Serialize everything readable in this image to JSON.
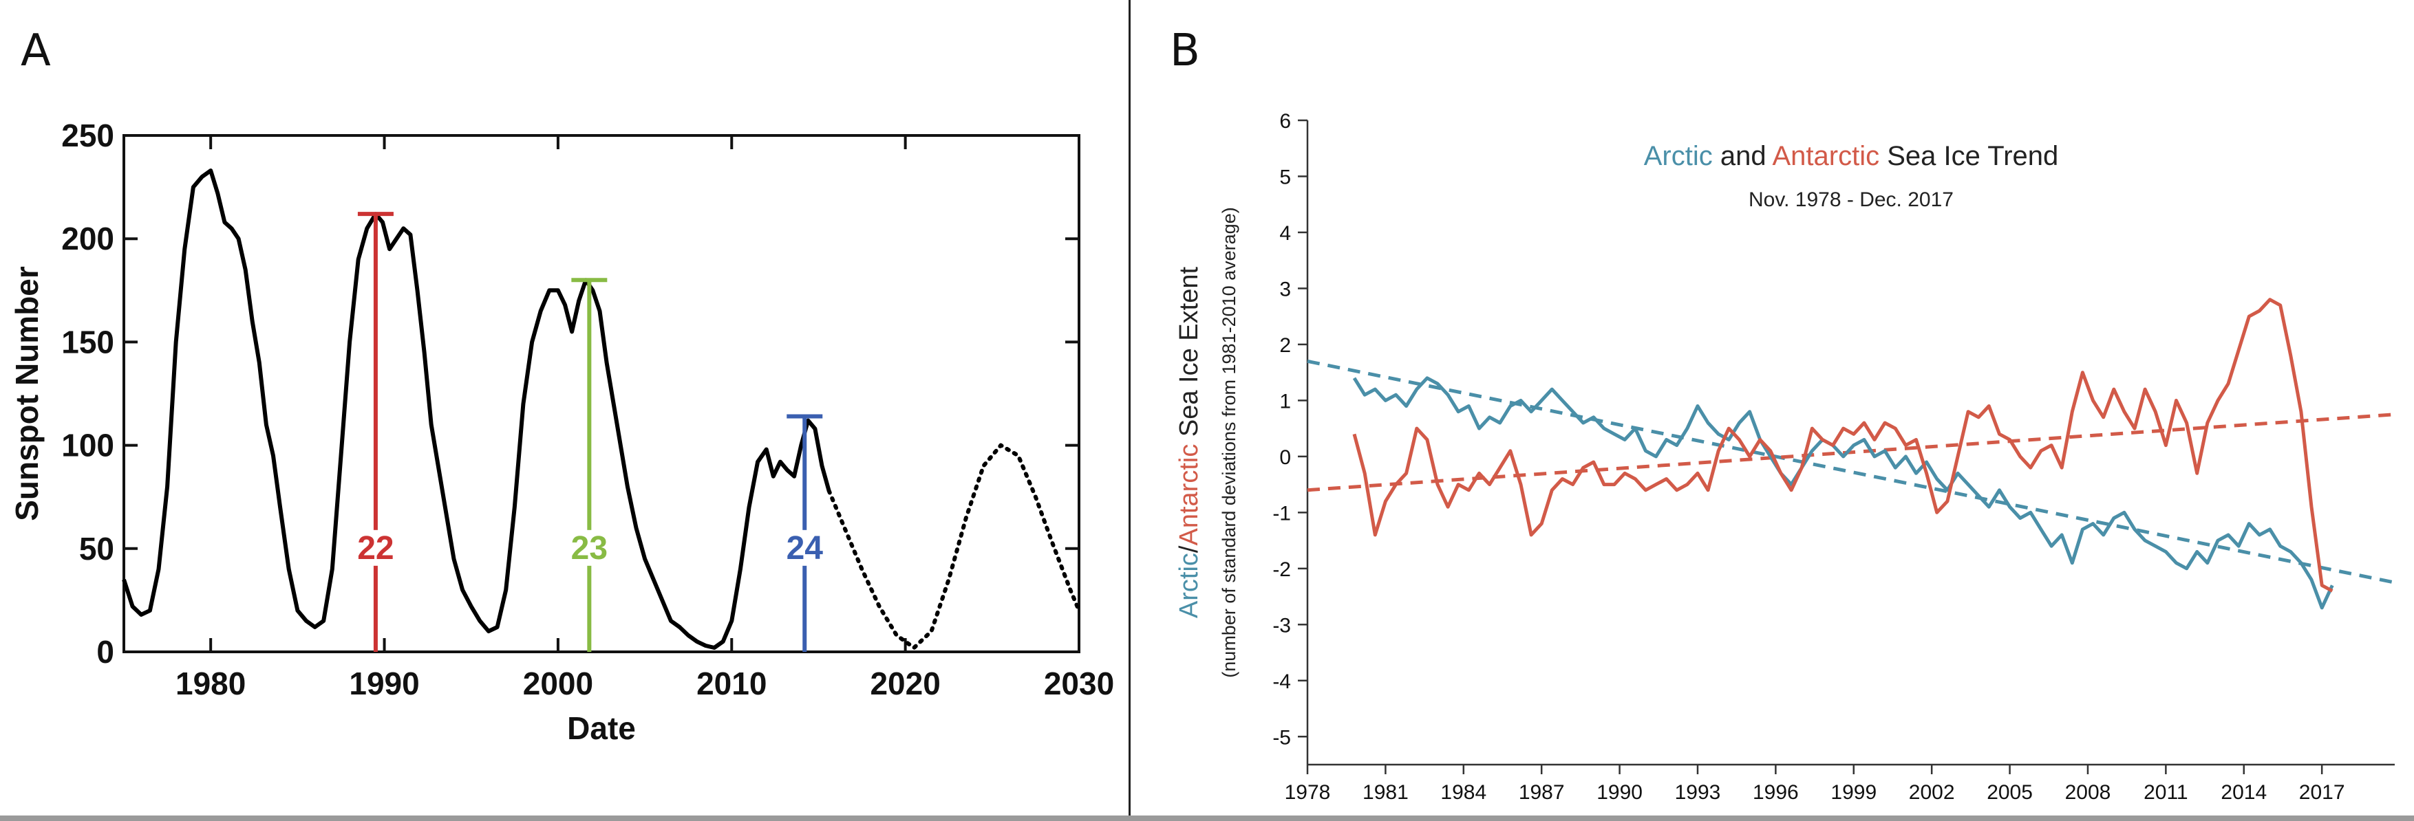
{
  "panels": {
    "a_label": "A",
    "b_label": "B"
  },
  "chart_data": [
    {
      "panel": "A",
      "type": "line",
      "title": "",
      "xlabel": "Date",
      "ylabel": "Sunspot Number",
      "xlim": [
        1975,
        2030
      ],
      "ylim": [
        0,
        250
      ],
      "xticks": [
        1980,
        1990,
        2000,
        2010,
        2020,
        2030
      ],
      "yticks": [
        0,
        50,
        100,
        150,
        200,
        250
      ],
      "series": [
        {
          "style": "solid",
          "color": "#000000",
          "x": [
            1975.0,
            1975.5,
            1976.0,
            1976.5,
            1977.0,
            1977.5,
            1978.0,
            1978.5,
            1979.0,
            1979.5,
            1980.0,
            1980.4,
            1980.8,
            1981.2,
            1981.6,
            1982.0,
            1982.4,
            1982.8,
            1983.2,
            1983.6,
            1984.0,
            1984.5,
            1985.0,
            1985.5,
            1986.0,
            1986.5,
            1987.0,
            1987.5,
            1988.0,
            1988.5,
            1989.0,
            1989.5,
            1989.9,
            1990.3,
            1990.7,
            1991.1,
            1991.5,
            1991.9,
            1992.3,
            1992.7,
            1993.1,
            1993.5,
            1994.0,
            1994.5,
            1995.0,
            1995.5,
            1996.0,
            1996.5,
            1997.0,
            1997.5,
            1998.0,
            1998.5,
            1999.0,
            1999.5,
            2000.0,
            2000.4,
            2000.8,
            2001.2,
            2001.6,
            2002.0,
            2002.4,
            2002.8,
            2003.2,
            2003.6,
            2004.0,
            2004.5,
            2005.0,
            2005.5,
            2006.0,
            2006.5,
            2007.0,
            2007.5,
            2008.0,
            2008.5,
            2009.0,
            2009.5,
            2010.0,
            2010.5,
            2011.0,
            2011.5,
            2012.0,
            2012.4,
            2012.8,
            2013.2,
            2013.6,
            2014.0,
            2014.4,
            2014.8,
            2015.2,
            2015.6
          ],
          "y": [
            35,
            22,
            18,
            20,
            40,
            80,
            150,
            195,
            225,
            230,
            233,
            222,
            208,
            205,
            200,
            185,
            160,
            140,
            110,
            95,
            70,
            40,
            20,
            15,
            12,
            15,
            40,
            95,
            150,
            190,
            205,
            212,
            208,
            195,
            200,
            205,
            202,
            175,
            145,
            110,
            90,
            70,
            45,
            30,
            22,
            15,
            10,
            12,
            30,
            70,
            120,
            150,
            165,
            175,
            175,
            168,
            155,
            170,
            180,
            175,
            165,
            140,
            120,
            100,
            80,
            60,
            45,
            35,
            25,
            15,
            12,
            8,
            5,
            3,
            2,
            5,
            15,
            40,
            70,
            92,
            98,
            85,
            92,
            88,
            85,
            100,
            112,
            108,
            90,
            78
          ]
        },
        {
          "style": "dotted",
          "color": "#000000",
          "x": [
            2015.6,
            2016.5,
            2017.5,
            2018.5,
            2019.5,
            2020.5,
            2021.5,
            2022.5,
            2023.5,
            2024.5,
            2025.5,
            2026.5,
            2027.5,
            2028.5,
            2029.5,
            2030.0
          ],
          "y": [
            78,
            60,
            40,
            22,
            8,
            2,
            10,
            35,
            65,
            90,
            100,
            95,
            75,
            52,
            30,
            20
          ]
        }
      ],
      "markers": [
        {
          "label": "22",
          "x": 1989.5,
          "y": 212,
          "color": "#cc3333"
        },
        {
          "label": "23",
          "x": 2001.8,
          "y": 180,
          "color": "#88bb44"
        },
        {
          "label": "24",
          "x": 2014.2,
          "y": 114,
          "color": "#3a5fb0"
        }
      ]
    },
    {
      "panel": "B",
      "type": "line",
      "title_parts": [
        "Arctic",
        " and ",
        "Antarctic",
        " Sea Ice Trend"
      ],
      "subtitle": "Nov. 1978 -  Dec. 2017",
      "ylabel_parts": [
        "Arctic",
        "/",
        "Antarctic",
        " Sea Ice Extent"
      ],
      "ylabel_sub": "(number of standard deviations from 1981-2010 average)",
      "xlim": [
        1978,
        2019.8
      ],
      "ylim": [
        -5.5,
        6
      ],
      "xticks": [
        1978,
        1981,
        1984,
        1987,
        1990,
        1993,
        1996,
        1999,
        2002,
        2005,
        2008,
        2011,
        2014,
        2017
      ],
      "yticks": [
        -5,
        -4,
        -3,
        -2,
        -1,
        0,
        1,
        2,
        3,
        4,
        5,
        6
      ],
      "colors": {
        "arctic": "#4a8fa8",
        "antarctic": "#d25a48",
        "dark": "#222222"
      },
      "series": [
        {
          "name": "Arctic",
          "color": "#4a8fa8",
          "x": [
            1979.8,
            1980.2,
            1980.6,
            1981.0,
            1981.4,
            1981.8,
            1982.2,
            1982.6,
            1983.0,
            1983.4,
            1983.8,
            1984.2,
            1984.6,
            1985.0,
            1985.4,
            1985.8,
            1986.2,
            1986.6,
            1987.0,
            1987.4,
            1987.8,
            1988.2,
            1988.6,
            1989.0,
            1989.4,
            1989.8,
            1990.2,
            1990.6,
            1991.0,
            1991.4,
            1991.8,
            1992.2,
            1992.6,
            1993.0,
            1993.4,
            1993.8,
            1994.2,
            1994.6,
            1995.0,
            1995.4,
            1995.8,
            1996.2,
            1996.6,
            1997.0,
            1997.4,
            1997.8,
            1998.2,
            1998.6,
            1999.0,
            1999.4,
            1999.8,
            2000.2,
            2000.6,
            2001.0,
            2001.4,
            2001.8,
            2002.2,
            2002.6,
            2003.0,
            2003.4,
            2003.8,
            2004.2,
            2004.6,
            2005.0,
            2005.4,
            2005.8,
            2006.2,
            2006.6,
            2007.0,
            2007.4,
            2007.8,
            2008.2,
            2008.6,
            2009.0,
            2009.4,
            2009.8,
            2010.2,
            2010.6,
            2011.0,
            2011.4,
            2011.8,
            2012.2,
            2012.6,
            2013.0,
            2013.4,
            2013.8,
            2014.2,
            2014.6,
            2015.0,
            2015.4,
            2015.8,
            2016.2,
            2016.6,
            2017.0,
            2017.4
          ],
          "y": [
            1.4,
            1.1,
            1.2,
            1.0,
            1.1,
            0.9,
            1.2,
            1.4,
            1.3,
            1.1,
            0.8,
            0.9,
            0.5,
            0.7,
            0.6,
            0.9,
            1.0,
            0.8,
            1.0,
            1.2,
            1.0,
            0.8,
            0.6,
            0.7,
            0.5,
            0.4,
            0.3,
            0.5,
            0.1,
            0.0,
            0.3,
            0.2,
            0.5,
            0.9,
            0.6,
            0.4,
            0.3,
            0.6,
            0.8,
            0.3,
            0.0,
            -0.3,
            -0.5,
            -0.2,
            0.1,
            0.3,
            0.2,
            0.0,
            0.2,
            0.3,
            0.0,
            0.1,
            -0.2,
            0.0,
            -0.3,
            -0.1,
            -0.4,
            -0.6,
            -0.3,
            -0.5,
            -0.7,
            -0.9,
            -0.6,
            -0.9,
            -1.1,
            -1.0,
            -1.3,
            -1.6,
            -1.4,
            -1.9,
            -1.3,
            -1.2,
            -1.4,
            -1.1,
            -1.0,
            -1.3,
            -1.5,
            -1.6,
            -1.7,
            -1.9,
            -2.0,
            -1.7,
            -1.9,
            -1.5,
            -1.4,
            -1.6,
            -1.2,
            -1.4,
            -1.3,
            -1.6,
            -1.7,
            -1.9,
            -2.2,
            -2.7,
            -2.3
          ]
        },
        {
          "name": "Antarctic",
          "color": "#d25a48",
          "x": [
            1979.8,
            1980.2,
            1980.6,
            1981.0,
            1981.4,
            1981.8,
            1982.2,
            1982.6,
            1983.0,
            1983.4,
            1983.8,
            1984.2,
            1984.6,
            1985.0,
            1985.4,
            1985.8,
            1986.2,
            1986.6,
            1987.0,
            1987.4,
            1987.8,
            1988.2,
            1988.6,
            1989.0,
            1989.4,
            1989.8,
            1990.2,
            1990.6,
            1991.0,
            1991.4,
            1991.8,
            1992.2,
            1992.6,
            1993.0,
            1993.4,
            1993.8,
            1994.2,
            1994.6,
            1995.0,
            1995.4,
            1995.8,
            1996.2,
            1996.6,
            1997.0,
            1997.4,
            1997.8,
            1998.2,
            1998.6,
            1999.0,
            1999.4,
            1999.8,
            2000.2,
            2000.6,
            2001.0,
            2001.4,
            2001.8,
            2002.2,
            2002.6,
            2003.0,
            2003.4,
            2003.8,
            2004.2,
            2004.6,
            2005.0,
            2005.4,
            2005.8,
            2006.2,
            2006.6,
            2007.0,
            2007.4,
            2007.8,
            2008.2,
            2008.6,
            2009.0,
            2009.4,
            2009.8,
            2010.2,
            2010.6,
            2011.0,
            2011.4,
            2011.8,
            2012.2,
            2012.6,
            2013.0,
            2013.4,
            2013.8,
            2014.2,
            2014.6,
            2015.0,
            2015.4,
            2015.8,
            2016.2,
            2016.6,
            2017.0,
            2017.4
          ],
          "y": [
            0.4,
            -0.3,
            -1.4,
            -0.8,
            -0.5,
            -0.3,
            0.5,
            0.3,
            -0.5,
            -0.9,
            -0.5,
            -0.6,
            -0.3,
            -0.5,
            -0.2,
            0.1,
            -0.5,
            -1.4,
            -1.2,
            -0.6,
            -0.4,
            -0.5,
            -0.2,
            -0.1,
            -0.5,
            -0.5,
            -0.3,
            -0.4,
            -0.6,
            -0.5,
            -0.4,
            -0.6,
            -0.5,
            -0.3,
            -0.6,
            0.1,
            0.5,
            0.3,
            0.0,
            0.3,
            0.1,
            -0.3,
            -0.6,
            -0.2,
            0.5,
            0.3,
            0.2,
            0.5,
            0.4,
            0.6,
            0.3,
            0.6,
            0.5,
            0.2,
            0.3,
            -0.3,
            -1.0,
            -0.8,
            0.0,
            0.8,
            0.7,
            0.9,
            0.4,
            0.3,
            0.0,
            -0.2,
            0.1,
            0.2,
            -0.2,
            0.8,
            1.5,
            1.0,
            0.7,
            1.2,
            0.8,
            0.5,
            1.2,
            0.8,
            0.2,
            1.0,
            0.6,
            -0.3,
            0.6,
            1.0,
            1.3,
            1.9,
            2.5,
            2.6,
            2.8,
            2.7,
            1.8,
            0.8,
            -0.9,
            -2.3,
            -2.4
          ]
        }
      ],
      "trendlines": [
        {
          "color": "#4a8fa8",
          "x": [
            1978,
            2019.8
          ],
          "y": [
            1.7,
            -2.25
          ]
        },
        {
          "color": "#d25a48",
          "x": [
            1978,
            2019.8
          ],
          "y": [
            -0.6,
            0.75
          ]
        }
      ]
    }
  ]
}
